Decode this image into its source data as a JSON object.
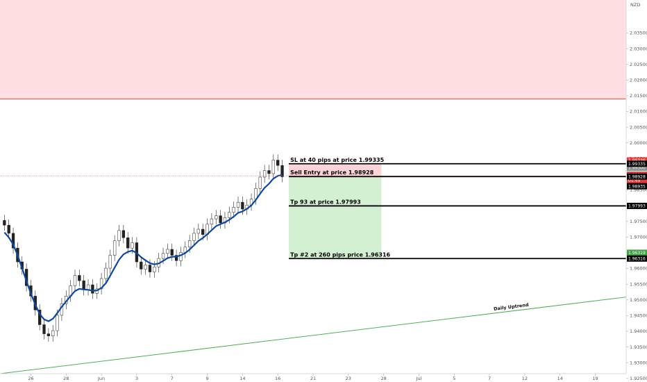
{
  "chart_data": {
    "type": "candlestick",
    "currency": "NZD",
    "y_range": [
      1.9265,
      2.0455
    ],
    "y_ticks": [
      "2.03500",
      "2.03000",
      "2.02500",
      "2.02000",
      "2.01500",
      "2.01000",
      "2.00500",
      "2.00000",
      "1.99500",
      "1.99000",
      "1.98500",
      "1.98000",
      "1.97500",
      "1.97000",
      "1.96500",
      "1.96000",
      "1.95500",
      "1.95000",
      "1.94500",
      "1.94000",
      "1.93500",
      "1.93000",
      "1.92500"
    ],
    "x_ticks": [
      {
        "label": "26",
        "i": 6
      },
      {
        "label": "28",
        "i": 14
      },
      {
        "label": "Jun",
        "i": 22
      },
      {
        "label": "3",
        "i": 30
      },
      {
        "label": "7",
        "i": 38
      },
      {
        "label": "9",
        "i": 46
      },
      {
        "label": "14",
        "i": 54
      },
      {
        "label": "16",
        "i": 62
      },
      {
        "label": "21",
        "i": 70
      },
      {
        "label": "23",
        "i": 78
      },
      {
        "label": "28",
        "i": 86
      },
      {
        "label": "Jul",
        "i": 94
      },
      {
        "label": "5",
        "i": 102
      },
      {
        "label": "7",
        "i": 110
      },
      {
        "label": "12",
        "i": 118
      },
      {
        "label": "14",
        "i": 126
      },
      {
        "label": "19",
        "i": 134
      }
    ],
    "x_range": [
      -1,
      141
    ],
    "closes": [
      1.9738,
      1.9712,
      1.9665,
      1.9621,
      1.9598,
      1.9545,
      1.9512,
      1.9468,
      1.9421,
      1.9392,
      1.9385,
      1.9402,
      1.9451,
      1.9488,
      1.9512,
      1.9545,
      1.9578,
      1.9561,
      1.9532,
      1.9548,
      1.9521,
      1.9535,
      1.9568,
      1.9601,
      1.9642,
      1.9688,
      1.9721,
      1.9698,
      1.9665,
      1.9682,
      1.9621,
      1.9598,
      1.9611,
      1.9589,
      1.9605,
      1.9632,
      1.9648,
      1.9661,
      1.9642,
      1.9625,
      1.9651,
      1.9668,
      1.9689,
      1.9712,
      1.9725,
      1.9708,
      1.9741,
      1.9758,
      1.9768,
      1.9745,
      1.9762,
      1.9779,
      1.9795,
      1.9811,
      1.9789,
      1.9802,
      1.9821,
      1.9855,
      1.9891,
      1.9912,
      1.9902,
      1.9945,
      1.9928,
      1.9892
    ],
    "ma": [
      1.9715,
      1.9699,
      1.9676,
      1.9642,
      1.9601,
      1.956,
      1.952,
      1.9485,
      1.9455,
      1.9438,
      1.9432,
      1.944,
      1.9458,
      1.9478,
      1.9495,
      1.9512,
      1.9528,
      1.9535,
      1.9533,
      1.9532,
      1.9529,
      1.953,
      1.9538,
      1.9553,
      1.9577,
      1.9603,
      1.9628,
      1.9645,
      1.9653,
      1.9657,
      1.9649,
      1.9636,
      1.9626,
      1.9617,
      1.9613,
      1.9616,
      1.9624,
      1.9633,
      1.9637,
      1.9638,
      1.9642,
      1.9649,
      1.966,
      1.9674,
      1.9688,
      1.9697,
      1.9709,
      1.9722,
      1.9735,
      1.9741,
      1.9747,
      1.9755,
      1.9765,
      1.9777,
      1.9782,
      1.979,
      1.9801,
      1.9818,
      1.9838,
      1.9857,
      1.987,
      1.9886,
      1.9895,
      1.9898
    ],
    "resistance_zone": [
      2.014,
      2.0455
    ],
    "trendline": {
      "from": [
        1.9265,
        -1
      ],
      "to": [
        1.9509,
        141
      ],
      "label": "Daily Uptrend"
    },
    "levels": [
      {
        "label": "SL at 40 pips at price 1.99335",
        "price": 1.99335,
        "tag": "1.99335"
      },
      {
        "label": "Sell Entry at price 1.98928",
        "price": 1.98928,
        "tag": "1.98928"
      },
      {
        "label": "Tp 93 at price 1.97993",
        "price": 1.97993,
        "tag": "1.97993"
      },
      {
        "label": "Tp #2 at 260 pips price 1.96316",
        "price": 1.96316,
        "tag": "1.96316"
      }
    ],
    "price_tags": [
      {
        "text": "1.99336",
        "price": 1.9944,
        "bg": "#e53935",
        "fg": "#ffffff"
      },
      {
        "text": "1.99300",
        "price": 1.9921,
        "bg": "#8a8a8a",
        "fg": "#ffffff"
      },
      {
        "text": "1.98950",
        "price": 1.98985,
        "bg": "#e53935",
        "fg": "#ffffff"
      },
      {
        "text": "01:45",
        "price": 1.988,
        "bg": "#e53935",
        "fg": "#ffffff"
      },
      {
        "text": "1.98935",
        "price": 1.9862,
        "bg": "#000000",
        "fg": "#ffffff"
      },
      {
        "text": "1.96319",
        "price": 1.965,
        "bg": "#43a047",
        "fg": "#ffffff"
      }
    ],
    "colors": {
      "zone": "#ffdfe2",
      "zone_line": "#f44336",
      "ma": "#0d47a1",
      "trend": "#4caf50",
      "profit": "#d4f0d2",
      "risk": "#ffd4d6",
      "candle": "#222222"
    }
  }
}
